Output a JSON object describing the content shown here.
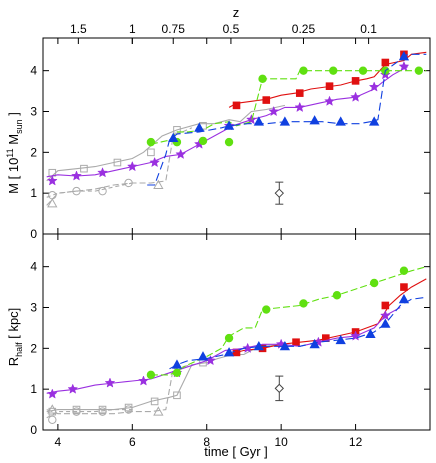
{
  "chart_data": [
    {
      "type": "line",
      "panel": "top",
      "ylabel_main": "M [ 10",
      "ylabel_sup": "11",
      "ylabel_mid": " M",
      "ylabel_sub": "sun",
      "ylabel_end": " ]",
      "xlim": [
        3.6,
        14.0
      ],
      "ylim": [
        0,
        4.8
      ],
      "y_ticks": [
        "0",
        "1",
        "2",
        "3",
        "4"
      ],
      "top_axis_label": "z",
      "top_axis_ticks": [
        {
          "label": "1.5",
          "x": 4.55
        },
        {
          "label": "1",
          "x": 6.0
        },
        {
          "label": "0.75",
          "x": 7.1
        },
        {
          "label": "0.5",
          "x": 8.65
        },
        {
          "label": "0.25",
          "x": 10.6
        },
        {
          "label": "0.1",
          "x": 12.35
        }
      ],
      "series": [
        {
          "color": "#e01010",
          "dash": "",
          "marker": "square",
          "x": [
            8.6,
            8.8,
            9.2,
            9.6,
            10.0,
            10.4,
            10.8,
            11.2,
            11.6,
            12.0,
            12.3,
            12.5,
            12.8,
            13.3,
            13.5,
            13.9
          ],
          "y": [
            3.1,
            3.2,
            3.25,
            3.3,
            3.4,
            3.45,
            3.55,
            3.6,
            3.65,
            3.75,
            3.8,
            3.85,
            4.15,
            4.25,
            4.4,
            4.45
          ],
          "mx": [
            8.8,
            9.6,
            10.5,
            11.3,
            12.0,
            12.8,
            13.3
          ],
          "my": [
            3.15,
            3.28,
            3.45,
            3.62,
            3.75,
            4.2,
            4.4
          ]
        },
        {
          "color": "#9a30e0",
          "dash": "",
          "marker": "star",
          "x": [
            3.7,
            4.0,
            4.5,
            5.0,
            5.5,
            6.0,
            6.5,
            6.9,
            7.3,
            7.8,
            8.3,
            8.7,
            9.2,
            9.6,
            10.1,
            10.5,
            11.0,
            11.5,
            12.0,
            12.5,
            12.7,
            13.0,
            13.4
          ],
          "y": [
            1.4,
            1.45,
            1.42,
            1.45,
            1.55,
            1.65,
            1.75,
            1.9,
            1.95,
            2.2,
            2.45,
            2.65,
            2.8,
            2.9,
            3.1,
            3.1,
            3.2,
            3.3,
            3.35,
            3.55,
            3.7,
            3.9,
            4.1
          ],
          "mx": [
            3.85,
            4.5,
            5.2,
            6.0,
            6.6,
            7.3,
            7.8,
            8.6,
            9.2,
            9.8,
            10.5,
            11.3,
            12.0,
            12.5,
            12.8,
            13.3
          ],
          "my": [
            1.3,
            1.42,
            1.5,
            1.65,
            1.75,
            1.95,
            2.2,
            2.65,
            2.8,
            3.0,
            3.1,
            3.25,
            3.35,
            3.6,
            3.9,
            4.1
          ]
        },
        {
          "color": "#60e010",
          "dash": "7,3",
          "marker": "circle",
          "x": [
            6.5,
            7.0,
            7.2,
            7.5,
            7.9,
            8.2,
            8.6,
            8.8,
            9.2,
            9.5,
            10.0,
            10.4,
            10.5,
            11.2,
            11.8,
            12.5,
            12.8,
            13.3,
            13.9
          ],
          "y": [
            2.2,
            2.3,
            2.5,
            2.5,
            2.55,
            2.7,
            2.75,
            2.65,
            2.75,
            3.8,
            3.8,
            3.8,
            4.0,
            4.0,
            4.0,
            4.0,
            4.0,
            4.0,
            4.0
          ],
          "mx": [
            6.5,
            7.2,
            7.9,
            8.6,
            9.5,
            10.6,
            11.4,
            12.2,
            12.8,
            13.7
          ],
          "my": [
            2.25,
            2.25,
            2.28,
            2.25,
            3.8,
            4.0,
            4.0,
            4.0,
            4.0,
            4.0
          ]
        },
        {
          "color": "#1040e0",
          "dash": "8,4",
          "marker": "triangle",
          "x": [
            6.4,
            6.6,
            6.9,
            7.0,
            7.2,
            7.8,
            8.4,
            8.6,
            9.1,
            9.6,
            10.1,
            10.6,
            11.1,
            11.6,
            12.1,
            12.4,
            12.6,
            12.8,
            13.1,
            13.4,
            13.9
          ],
          "y": [
            1.2,
            1.2,
            1.95,
            2.3,
            2.45,
            2.5,
            2.6,
            2.65,
            2.7,
            2.7,
            2.75,
            2.75,
            2.75,
            2.7,
            2.7,
            2.75,
            2.8,
            4.0,
            4.2,
            4.4,
            4.4
          ],
          "mx": [
            7.1,
            7.8,
            8.6,
            9.4,
            10.1,
            10.9,
            11.6,
            12.5,
            13.3
          ],
          "my": [
            2.35,
            2.6,
            2.65,
            2.75,
            2.75,
            2.78,
            2.75,
            2.75,
            4.35
          ]
        },
        {
          "color": "#aaaaaa",
          "dash": "",
          "marker": "square",
          "x": [
            3.7,
            4.0,
            4.5,
            5.0,
            5.5,
            6.0,
            6.3,
            6.8,
            7.2,
            7.8,
            8.2,
            8.6,
            8.9,
            9.2,
            9.6,
            10.1
          ],
          "y": [
            1.3,
            1.55,
            1.6,
            1.65,
            1.75,
            1.85,
            2.0,
            2.4,
            2.55,
            2.7,
            2.7,
            2.8,
            2.75,
            3.0,
            3.05,
            3.15
          ],
          "mx": [
            3.85,
            4.7,
            5.6,
            6.5,
            7.2,
            7.9
          ],
          "my": [
            1.5,
            1.6,
            1.75,
            2.0,
            2.55,
            2.65
          ]
        },
        {
          "color": "#aaaaaa",
          "dash": "4,3",
          "marker": "circle",
          "x": [
            3.7,
            4.0,
            4.5,
            5.0,
            5.5,
            6.0
          ],
          "y": [
            0.9,
            1.0,
            1.05,
            1.05,
            1.15,
            1.25
          ],
          "mx": [
            3.85,
            4.5,
            5.2,
            5.9
          ],
          "my": [
            0.95,
            1.05,
            1.05,
            1.25
          ]
        },
        {
          "color": "#aaaaaa",
          "dash": "6,3",
          "marker": "triangle",
          "x": [
            3.7,
            4.0,
            4.5,
            5.0,
            5.5,
            6.0,
            6.5,
            6.9,
            7.1,
            7.6
          ],
          "y": [
            0.7,
            1.0,
            1.05,
            1.1,
            1.2,
            1.25,
            1.25,
            1.3,
            2.4,
            2.6
          ],
          "mx": [
            3.85,
            6.7
          ],
          "my": [
            0.75,
            1.2
          ]
        }
      ],
      "errorbar": {
        "x": 9.95,
        "y": 1.0,
        "yerr": 0.27
      }
    },
    {
      "type": "line",
      "panel": "bottom",
      "ylabel_main": "R",
      "ylabel_sub": "half",
      "ylabel_end": " [ kpc]",
      "xlabel": "time [ Gyr ]",
      "xlim": [
        3.6,
        14.0
      ],
      "ylim": [
        0,
        4.8
      ],
      "y_ticks": [
        "0",
        "1",
        "2",
        "3",
        "4"
      ],
      "x_ticks": [
        "4",
        "6",
        "8",
        "10",
        "12"
      ],
      "x_tick_values": [
        4,
        6,
        8,
        10,
        12
      ],
      "series": [
        {
          "color": "#e01010",
          "dash": "",
          "marker": "square",
          "x": [
            8.6,
            9.0,
            9.5,
            10.0,
            10.5,
            11.0,
            11.5,
            12.0,
            12.3,
            12.6,
            12.9,
            13.2,
            13.5,
            13.9
          ],
          "y": [
            1.85,
            1.95,
            2.0,
            2.1,
            2.15,
            2.2,
            2.3,
            2.4,
            2.5,
            2.6,
            3.05,
            3.3,
            3.5,
            3.7
          ],
          "mx": [
            8.8,
            9.5,
            10.4,
            11.2,
            12.0,
            12.8,
            13.3
          ],
          "my": [
            1.9,
            2.0,
            2.15,
            2.25,
            2.4,
            3.05,
            3.5
          ]
        },
        {
          "color": "#9a30e0",
          "dash": "",
          "marker": "star",
          "x": [
            3.7,
            4.0,
            4.5,
            5.0,
            5.5,
            6.0,
            6.5,
            7.0,
            7.5,
            8.0,
            8.5,
            9.0,
            9.5,
            10.0,
            10.5,
            11.0,
            11.5,
            12.0,
            12.5,
            12.8,
            13.2
          ],
          "y": [
            0.9,
            0.95,
            1.0,
            1.1,
            1.15,
            1.2,
            1.25,
            1.4,
            1.55,
            1.7,
            1.95,
            2.0,
            2.1,
            2.1,
            2.05,
            2.15,
            2.25,
            2.3,
            2.5,
            2.8,
            3.0
          ],
          "mx": [
            3.85,
            4.4,
            5.4,
            6.3,
            7.2,
            8.1,
            9.1,
            10.0,
            11.0,
            12.0,
            12.8
          ],
          "my": [
            0.88,
            1.0,
            1.15,
            1.2,
            1.4,
            1.7,
            2.0,
            2.1,
            2.15,
            2.3,
            2.8
          ]
        },
        {
          "color": "#60e010",
          "dash": "7,3",
          "marker": "circle",
          "x": [
            6.5,
            7.0,
            7.5,
            8.0,
            8.4,
            8.6,
            9.0,
            9.3,
            9.5,
            10.0,
            10.5,
            11.0,
            11.5,
            12.0,
            12.5,
            13.0,
            13.5,
            13.9
          ],
          "y": [
            1.35,
            1.35,
            1.6,
            1.8,
            2.0,
            2.3,
            2.5,
            2.5,
            2.95,
            3.0,
            3.05,
            3.2,
            3.3,
            3.45,
            3.6,
            3.75,
            3.9,
            4.0
          ],
          "mx": [
            6.5,
            7.2,
            8.6,
            9.6,
            10.6,
            11.5,
            12.5,
            13.3
          ],
          "my": [
            1.35,
            1.4,
            2.25,
            2.95,
            3.1,
            3.3,
            3.6,
            3.9
          ]
        },
        {
          "color": "#1040e0",
          "dash": "8,4",
          "marker": "triangle",
          "x": [
            7.0,
            7.2,
            7.5,
            8.0,
            8.5,
            9.0,
            9.5,
            10.0,
            10.5,
            11.0,
            11.5,
            12.0,
            12.5,
            12.8,
            13.2,
            13.5,
            13.9
          ],
          "y": [
            1.5,
            1.6,
            1.7,
            1.75,
            1.85,
            2.0,
            2.05,
            2.05,
            2.05,
            2.15,
            2.2,
            2.25,
            2.4,
            2.6,
            3.05,
            3.2,
            3.25
          ],
          "mx": [
            7.2,
            7.9,
            8.6,
            9.4,
            10.1,
            10.9,
            11.6,
            12.4,
            12.8,
            13.3
          ],
          "my": [
            1.6,
            1.8,
            1.9,
            2.05,
            2.05,
            2.1,
            2.2,
            2.35,
            2.6,
            3.2
          ]
        },
        {
          "color": "#aaaaaa",
          "dash": "",
          "marker": "square",
          "x": [
            3.7,
            4.0,
            4.5,
            5.0,
            5.5,
            6.0,
            6.5,
            7.0,
            7.2,
            7.6,
            8.0,
            8.3,
            8.7,
            9.0,
            9.2,
            9.6,
            10.0
          ],
          "y": [
            0.45,
            0.5,
            0.5,
            0.5,
            0.5,
            0.55,
            0.7,
            0.8,
            0.85,
            1.6,
            1.65,
            1.75,
            1.85,
            1.85,
            1.95,
            2.05,
            2.1
          ],
          "mx": [
            3.85,
            4.5,
            5.2,
            5.9,
            6.6,
            7.2,
            7.9
          ],
          "my": [
            0.45,
            0.5,
            0.5,
            0.55,
            0.7,
            0.85,
            1.65
          ]
        },
        {
          "color": "#aaaaaa",
          "dash": "4,3",
          "marker": "circle",
          "x": [
            3.7,
            4.0,
            4.5,
            5.0,
            5.5,
            6.0
          ],
          "y": [
            0.3,
            0.45,
            0.45,
            0.45,
            0.5,
            0.5
          ],
          "mx": [
            3.85,
            4.5,
            5.2,
            5.9
          ],
          "my": [
            0.25,
            0.45,
            0.45,
            0.5
          ]
        },
        {
          "color": "#aaaaaa",
          "dash": "6,3",
          "marker": "triangle",
          "x": [
            3.7,
            4.0,
            4.5,
            5.0,
            5.5,
            6.0,
            6.5,
            6.9,
            7.1,
            7.6
          ],
          "y": [
            0.5,
            0.4,
            0.4,
            0.4,
            0.4,
            0.45,
            0.45,
            0.5,
            1.5,
            1.6
          ],
          "mx": [
            3.85,
            6.7
          ],
          "my": [
            0.5,
            0.45
          ]
        }
      ],
      "errorbar": {
        "x": 9.95,
        "y": 1.02,
        "yerr": 0.3
      }
    }
  ]
}
